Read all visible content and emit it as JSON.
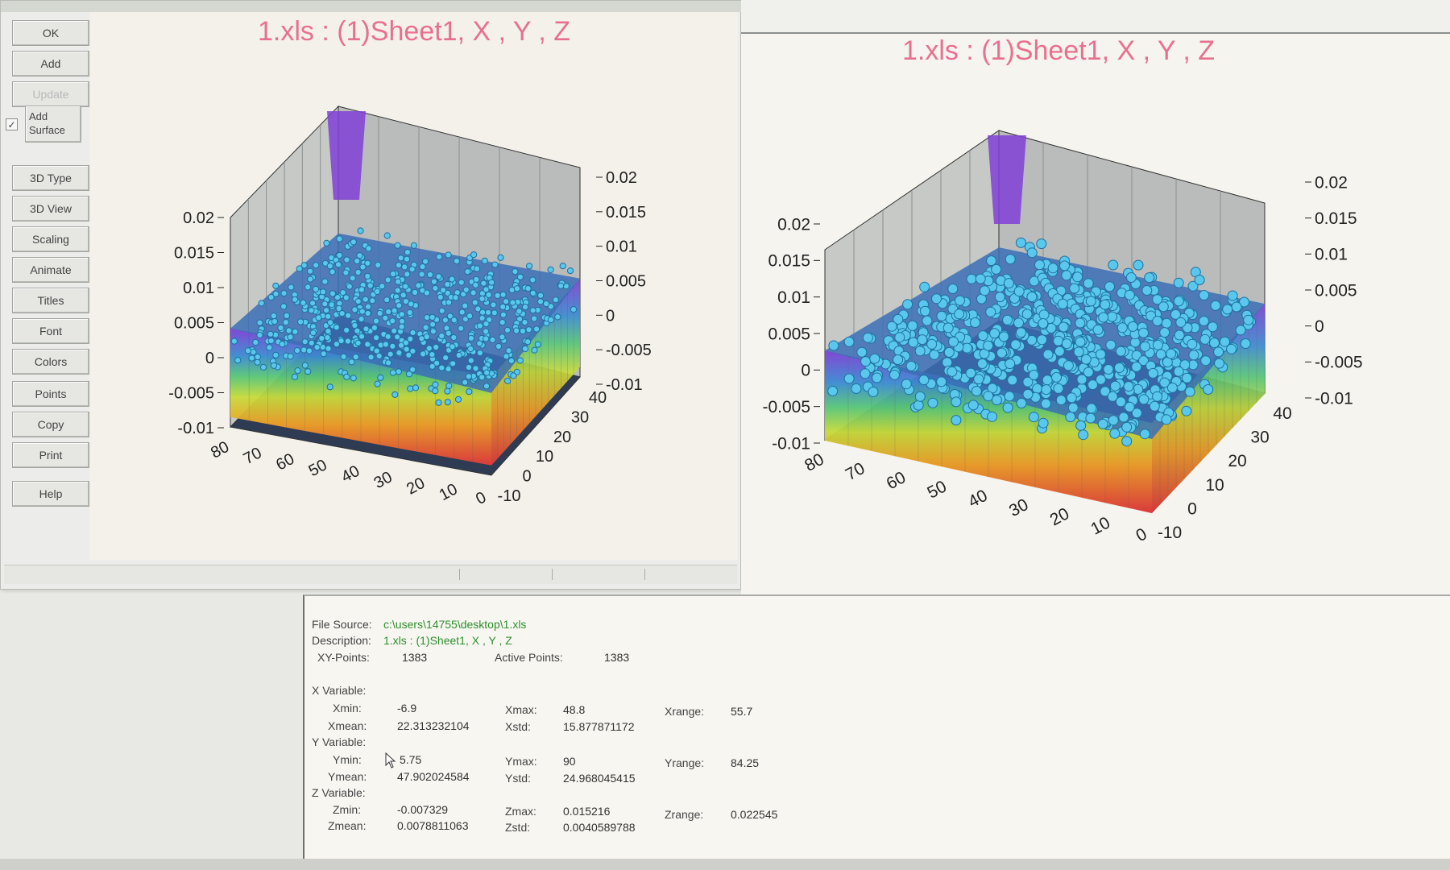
{
  "buttons": [
    {
      "id": "ok",
      "label": "OK",
      "enabled": true
    },
    {
      "id": "add",
      "label": "Add",
      "enabled": true
    },
    {
      "id": "update",
      "label": "Update",
      "enabled": false
    },
    {
      "id": "3d-type",
      "label": "3D Type",
      "enabled": true
    },
    {
      "id": "3d-view",
      "label": "3D View",
      "enabled": true
    },
    {
      "id": "scaling",
      "label": "Scaling",
      "enabled": true
    },
    {
      "id": "animate",
      "label": "Animate",
      "enabled": true
    },
    {
      "id": "titles",
      "label": "Titles",
      "enabled": true
    },
    {
      "id": "font",
      "label": "Font",
      "enabled": true
    },
    {
      "id": "colors",
      "label": "Colors",
      "enabled": true
    },
    {
      "id": "points",
      "label": "Points",
      "enabled": true
    },
    {
      "id": "copy",
      "label": "Copy",
      "enabled": true
    },
    {
      "id": "print",
      "label": "Print",
      "enabled": true
    },
    {
      "id": "help",
      "label": "Help",
      "enabled": true
    }
  ],
  "add_surface": {
    "label_line1": "Add",
    "label_line2": "Surface",
    "checked": true,
    "check_glyph": "✓"
  },
  "colors": {
    "title": "#e8708f",
    "points_fill": "#59c8ec",
    "points_stroke": "#1f6f9e",
    "surface_high": "#7f3fd6",
    "surface_low": "#e23a3a",
    "file_text": "#2f8f2f"
  },
  "chart_data": [
    {
      "type": "scatter",
      "subtype": "3d-scatter-with-surface",
      "title": "1.xls : (1)Sheet1, X , Y , Z",
      "x_ticks": [
        "-10",
        "0",
        "10",
        "20",
        "30",
        "40"
      ],
      "y_ticks": [
        "0",
        "10",
        "20",
        "30",
        "40",
        "50",
        "60",
        "70",
        "80"
      ],
      "z_ticks_left": [
        "0.02",
        "0.015",
        "0.01",
        "0.005",
        "0",
        "-0.005",
        "-0.01"
      ],
      "z_ticks_right": [
        "0.02",
        "0.015",
        "0.01",
        "0.005",
        "0",
        "-0.005",
        "-0.01"
      ],
      "xlim": [
        -6.9,
        48.8
      ],
      "ylim": [
        5.75,
        90
      ],
      "zlim": [
        -0.007329,
        0.015216
      ],
      "point_count": 1383,
      "surface": true,
      "marker_size": "small"
    },
    {
      "type": "scatter",
      "subtype": "3d-scatter-with-surface",
      "title": "1.xls : (1)Sheet1, X , Y , Z",
      "x_ticks": [
        "-10",
        "0",
        "10",
        "20",
        "30",
        "40"
      ],
      "y_ticks": [
        "0",
        "10",
        "20",
        "30",
        "40",
        "50",
        "60",
        "70",
        "80"
      ],
      "z_ticks_left": [
        "0.02",
        "0.015",
        "0.01",
        "0.005",
        "0",
        "-0.005",
        "-0.01"
      ],
      "z_ticks_right": [
        "0.02",
        "0.015",
        "0.01",
        "0.005",
        "0",
        "-0.005",
        "-0.01"
      ],
      "xlim": [
        -6.9,
        48.8
      ],
      "ylim": [
        5.75,
        90
      ],
      "zlim": [
        -0.007329,
        0.015216
      ],
      "point_count": 1383,
      "surface": true,
      "marker_size": "large"
    }
  ],
  "stats": {
    "file_source_label": "File Source:",
    "file_source": "c:\\users\\14755\\desktop\\1.xls",
    "description_label": "Description:",
    "description": "1.xls : (1)Sheet1, X , Y , Z",
    "xy_points_label": "XY-Points:",
    "xy_points": "1383",
    "active_points_label": "Active Points:",
    "active_points": "1383",
    "x": {
      "heading": "X Variable:",
      "min_label": "Xmin:",
      "min": "-6.9",
      "max_label": "Xmax:",
      "max": "48.8",
      "range_label": "Xrange:",
      "range": "55.7",
      "mean_label": "Xmean:",
      "mean": "22.313232104",
      "std_label": "Xstd:",
      "std": "15.877871172"
    },
    "y": {
      "heading": "Y Variable:",
      "min_label": "Ymin:",
      "min": "5.75",
      "max_label": "Ymax:",
      "max": "90",
      "range_label": "Yrange:",
      "range": "84.25",
      "mean_label": "Ymean:",
      "mean": "47.902024584",
      "std_label": "Ystd:",
      "std": "24.968045415"
    },
    "z": {
      "heading": "Z Variable:",
      "min_label": "Zmin:",
      "min": "-0.007329",
      "max_label": "Zmax:",
      "max": "0.015216",
      "range_label": "Zrange:",
      "range": "0.022545",
      "mean_label": "Zmean:",
      "mean": "0.0078811063",
      "std_label": "Zstd:",
      "std": "0.0040589788"
    }
  }
}
